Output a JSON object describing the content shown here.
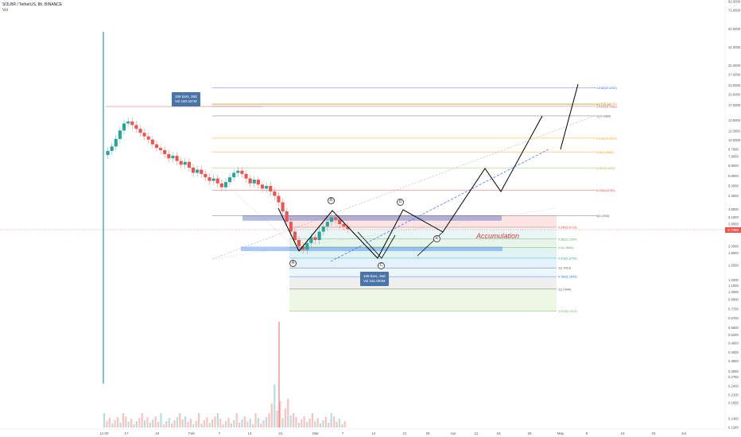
{
  "header": {
    "title": "SOLBR / TetherUS, 8h, BINANCE",
    "subtitle": "Vol"
  },
  "tooltips": {
    "top": {
      "line1": "108 bars, 36d",
      "line2": "Vol 180.337M"
    },
    "bottom": {
      "line1": "108 bars, 36d",
      "line2": "Vol 161.003M"
    }
  },
  "annotation": {
    "accumulation": "Accumulation"
  },
  "waves": {
    "a": "A",
    "b": "B",
    "c": "C",
    "d": "D",
    "e": "E"
  },
  "price_tag": "2.7380",
  "colors": {
    "up": "#26a69a",
    "down": "#ef5350",
    "fib_red": "#e53935",
    "fib_orange": "#ff9800",
    "fib_green": "#4caf50",
    "fib_blue": "#2962ff",
    "channel_dash": "#2962ff",
    "accent": "#ff9800"
  },
  "chart_data": {
    "type": "candlestick",
    "title": "SOLBR / TetherUS, 8h, BINANCE",
    "y_scale": "log",
    "x_ticks": [
      "11:00",
      "17",
      "24",
      "Feb",
      "7",
      "14",
      "21",
      "Mar",
      "7",
      "14",
      "21",
      "28",
      "Apr",
      "11",
      "18",
      "25",
      "May",
      "9",
      "16",
      "23",
      "Jul"
    ],
    "y_ticks": [
      "82.0000",
      "72.0000",
      "54.0000",
      "41.0000",
      "31.0000",
      "27.0000",
      "23.0000",
      "20.0000",
      "17.0000",
      "13.5000",
      "11.5000",
      "10.0000",
      "8.7000",
      "7.8000",
      "6.8000",
      "5.8000",
      "5.0000",
      "4.3000",
      "3.5000",
      "3.1000",
      "2.8000",
      "2.5000",
      "2.0000",
      "1.8000",
      "1.5000",
      "1.2000",
      "1.1000",
      "1.0000",
      "0.8900",
      "0.7700",
      "0.6700",
      "0.5800",
      "0.5200",
      "0.4600",
      "0.4000",
      "0.3500",
      "0.3000",
      "0.2750",
      "0.2400",
      "0.2100",
      "0.1860",
      "0.1460",
      "0.1280"
    ],
    "fib_levels": [
      {
        "label": "3(17.2148)",
        "value": 17.2148,
        "color": "#4caf50"
      },
      {
        "label": "1.618(22.1242)",
        "value": 22.1242,
        "color": "#2962ff"
      },
      {
        "label": "1.414(16.7281)",
        "value": 16.7281,
        "color": "#e53935"
      },
      {
        "label": "1.272(17.4120)",
        "value": 17.412,
        "color": "#ff9800"
      },
      {
        "label": "1(14.4589)",
        "value": 14.4589,
        "color": "#555555"
      },
      {
        "label": "0.618(10.3228)",
        "value": 10.3228,
        "color": "#ff9800"
      },
      {
        "label": "0.65(8.3586)",
        "value": 8.3586,
        "color": "#ff9800"
      },
      {
        "label": "0.382(6.5433)",
        "value": 6.5433,
        "color": "#8bc34a"
      },
      {
        "label": "0.236(4.6783)",
        "value": 4.6783,
        "color": "#e53935"
      },
      {
        "label": "0(3.1903)",
        "value": 3.1903,
        "color": "#555555"
      },
      {
        "label": "0.236(2.6714)",
        "value": 2.6714,
        "color": "#e53935"
      },
      {
        "label": "0.382(2.2340)",
        "value": 2.234,
        "color": "#4caf50"
      },
      {
        "label": "0.5(1.9640)",
        "value": 1.964,
        "color": "#4caf50"
      },
      {
        "label": "0.618(1.6708)",
        "value": 1.6708,
        "color": "#26a69a"
      },
      {
        "label": "1(1.4412)",
        "value": 1.4412,
        "color": "#555555"
      },
      {
        "label": "0.786(1.2626)",
        "value": 1.2626,
        "color": "#2962ff"
      },
      {
        "label": "1(1.0449)",
        "value": 1.0449,
        "color": "#555555"
      },
      {
        "label": "1.272(0.7474)",
        "value": 0.7474,
        "color": "#4caf50"
      }
    ],
    "candles_close": [
      8.5,
      9.1,
      10.2,
      11.6,
      12.9,
      13.3,
      12.6,
      11.9,
      11.2,
      10.6,
      10.1,
      9.4,
      8.9,
      8.6,
      8.1,
      7.6,
      7.9,
      7.3,
      6.9,
      7.2,
      6.6,
      6.1,
      6.4,
      6.0,
      5.7,
      5.4,
      5.6,
      5.2,
      4.9,
      5.3,
      5.7,
      6.1,
      6.3,
      6.0,
      5.6,
      5.2,
      5.5,
      5.1,
      4.8,
      5.0,
      4.6,
      4.3,
      3.9,
      3.4,
      2.9,
      2.5,
      2.2,
      2.0,
      1.9,
      2.1,
      2.3,
      2.2,
      2.5,
      2.7,
      2.9,
      3.1,
      3.0,
      2.8,
      2.7,
      2.6
    ],
    "projection_path": [
      {
        "x": "Feb 24",
        "y": 1.96
      },
      {
        "x": "Mar 5",
        "y": 2.95
      },
      {
        "x": "Mar 14",
        "y": 1.62
      },
      {
        "x": "Mar 21",
        "y": 3.05
      },
      {
        "x": "Apr 1",
        "y": 2.25
      },
      {
        "x": "Apr 9",
        "y": 6.5
      },
      {
        "x": "Apr 15",
        "y": 4.6
      },
      {
        "x": "Apr 28",
        "y": 14.8
      }
    ]
  }
}
